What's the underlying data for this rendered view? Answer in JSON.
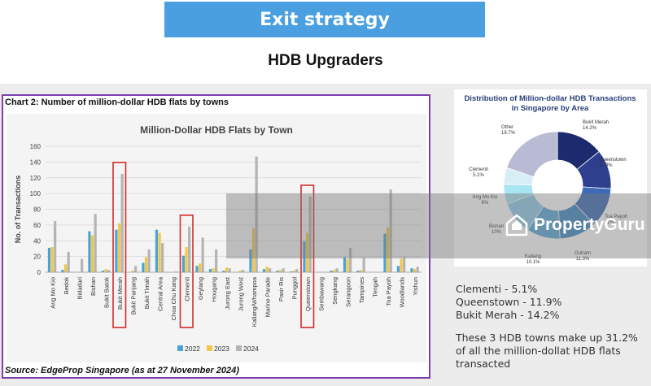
{
  "header": {
    "banner": "Exit strategy",
    "subtitle": "HDB Upgraders"
  },
  "left_panel": {
    "caption": "Chart 2: Number of million-dollar HDB flats by towns",
    "source": "Source: EdgeProp Singapore (as at 27 November 2024)"
  },
  "right_panel": {
    "stats": [
      "Clementi - 5.1%",
      "Queenstown - 11.9%",
      "Bukit Merah - 14.2%"
    ],
    "summary": "These 3 HDB towns make up 31.2% of all the million-dollat HDB flats transacted"
  },
  "watermark": {
    "text": "PropertyGuru",
    "icon": "house-logo-icon"
  },
  "colors": {
    "y2022": "#4aa3d8",
    "y2023": "#f2c744",
    "y2024": "#b4b4b4",
    "highlight": "#d62b2b",
    "banner": "#4a9fe0",
    "frame": "#7b3fb0"
  },
  "chart_data": [
    {
      "type": "bar",
      "title": "Million-Dollar HDB Flats by Town",
      "xlabel": "",
      "ylabel": "No. of Transactions",
      "ylim": [
        0,
        160
      ],
      "yticks": [
        0,
        20,
        40,
        60,
        80,
        100,
        120,
        140,
        160
      ],
      "grid": true,
      "legend_position": "bottom",
      "categories": [
        "Ang Mo Kio",
        "Bedok",
        "Bidadari",
        "Bishan",
        "Bukit Batok",
        "Bukit Merah",
        "Bukit Panjang",
        "Bukit Timah",
        "Central Area",
        "Choa Chu Kang",
        "Clementi",
        "Geylang",
        "Hougang",
        "Jurong East",
        "Jurong West",
        "Kallang/Whampoa",
        "Marine Parade",
        "Pasir Ris",
        "Punggol",
        "Queenstown",
        "Sembawang",
        "Sengkang",
        "Serangoon",
        "Tampines",
        "Tengah",
        "Toa Payoh",
        "Woodlands",
        "Yishun"
      ],
      "series": [
        {
          "name": "2022",
          "values": [
            31,
            3,
            0,
            52,
            2,
            54,
            0,
            12,
            54,
            0,
            21,
            8,
            4,
            2,
            0,
            29,
            4,
            2,
            1,
            39,
            0,
            2,
            19,
            2,
            0,
            49,
            8,
            5
          ]
        },
        {
          "name": "2023",
          "values": [
            32,
            10,
            0,
            47,
            4,
            62,
            2,
            19,
            50,
            0,
            32,
            11,
            5,
            6,
            2,
            56,
            7,
            3,
            2,
            50,
            0,
            3,
            17,
            3,
            0,
            57,
            17,
            4
          ]
        },
        {
          "name": "2024",
          "values": [
            65,
            26,
            17,
            74,
            3,
            125,
            8,
            29,
            37,
            1,
            58,
            44,
            29,
            5,
            3,
            147,
            5,
            5,
            4,
            96,
            0,
            5,
            31,
            18,
            0,
            105,
            19,
            7
          ]
        }
      ],
      "highlighted": [
        "Bukit Merah",
        "Clementi",
        "Queenstown"
      ]
    },
    {
      "type": "pie",
      "title": "Distribution of Million-dollar HDB Transactions in Singapore by Area",
      "categories": [
        "Bukit Merah",
        "Queenstown",
        "Toa Payoh",
        "Outram",
        "Kallang",
        "Bishan",
        "Ang Mo Kio",
        "Clementi",
        "Tengah",
        "Other"
      ],
      "values": [
        14.2,
        11.9,
        12,
        11.3,
        10.1,
        10,
        6,
        5.1,
        0,
        19.7
      ],
      "labels": [
        "Bukit Merah\n14.2%",
        "Queenstown\n11.9%",
        "Toa Payoh\n12%",
        "Outram\n11.3%",
        "Kallang\n10.1%",
        "Bishan\n10%",
        "Ang Mo Kio\n6%",
        "Clementi\n5.1%",
        "",
        "Other\n19.7%"
      ],
      "colors": [
        "#1d2a6e",
        "#2e3f8e",
        "#3d6bb5",
        "#3f87c4",
        "#58a8d8",
        "#8fcdea",
        "#a8e4f2",
        "#d8eef6",
        "#eef4f8",
        "#b9bad4"
      ]
    }
  ]
}
